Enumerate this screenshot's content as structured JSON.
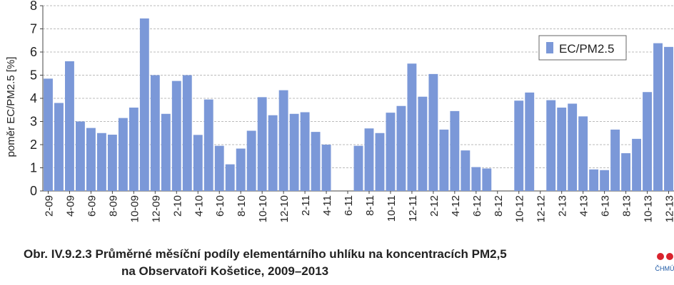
{
  "chart_data": {
    "type": "bar",
    "y_label": "poměr EC/PM2.5 [%]",
    "caption": [
      "Obr. IV.9.2.3  Průměrné měsíční podíly elementárního uhlíku na koncentracích PM2,5",
      "na Observatoři Košetice, 2009–2013"
    ],
    "logo": "ČHMÚ",
    "categories": [
      "2-09",
      null,
      "4-09",
      null,
      "6-09",
      null,
      "8-09",
      null,
      "10-09",
      null,
      "12-09",
      null,
      "2-10",
      null,
      "4-10",
      null,
      "6-10",
      null,
      "8-10",
      null,
      "10-10",
      null,
      "12-10",
      null,
      "2-11",
      null,
      "4-11",
      null,
      "6-11",
      null,
      "8-11",
      null,
      "10-11",
      null,
      "12-11",
      null,
      "2-12",
      null,
      "4-12",
      null,
      "6-12",
      null,
      "8-12",
      null,
      "10-12",
      null,
      "12-12",
      null,
      "2-13",
      null,
      "4-13",
      null,
      "6-13",
      null,
      "8-13",
      null,
      "10-13",
      null,
      "12-13"
    ],
    "series": [
      {
        "name": "EC/PM2.5",
        "color": "#7b98d8",
        "values": [
          4.85,
          3.8,
          5.6,
          3.0,
          2.72,
          2.5,
          2.43,
          3.15,
          3.6,
          7.45,
          5.0,
          3.33,
          4.75,
          5.0,
          2.42,
          3.95,
          1.95,
          1.15,
          1.83,
          2.6,
          4.05,
          3.27,
          4.35,
          3.33,
          3.4,
          2.55,
          2.0,
          null,
          null,
          1.95,
          2.7,
          2.5,
          3.38,
          3.67,
          5.5,
          4.07,
          5.05,
          2.65,
          3.45,
          1.75,
          1.03,
          0.97,
          null,
          null,
          3.9,
          4.25,
          null,
          3.92,
          3.6,
          3.77,
          3.22,
          0.93,
          0.9,
          2.65,
          1.63,
          2.25,
          4.27,
          6.38,
          6.22
        ]
      }
    ],
    "ylim": [
      0,
      8
    ],
    "yticks": [
      0,
      1,
      2,
      3,
      4,
      5,
      6,
      7,
      8
    ],
    "grid": true,
    "legend": "upper right"
  }
}
